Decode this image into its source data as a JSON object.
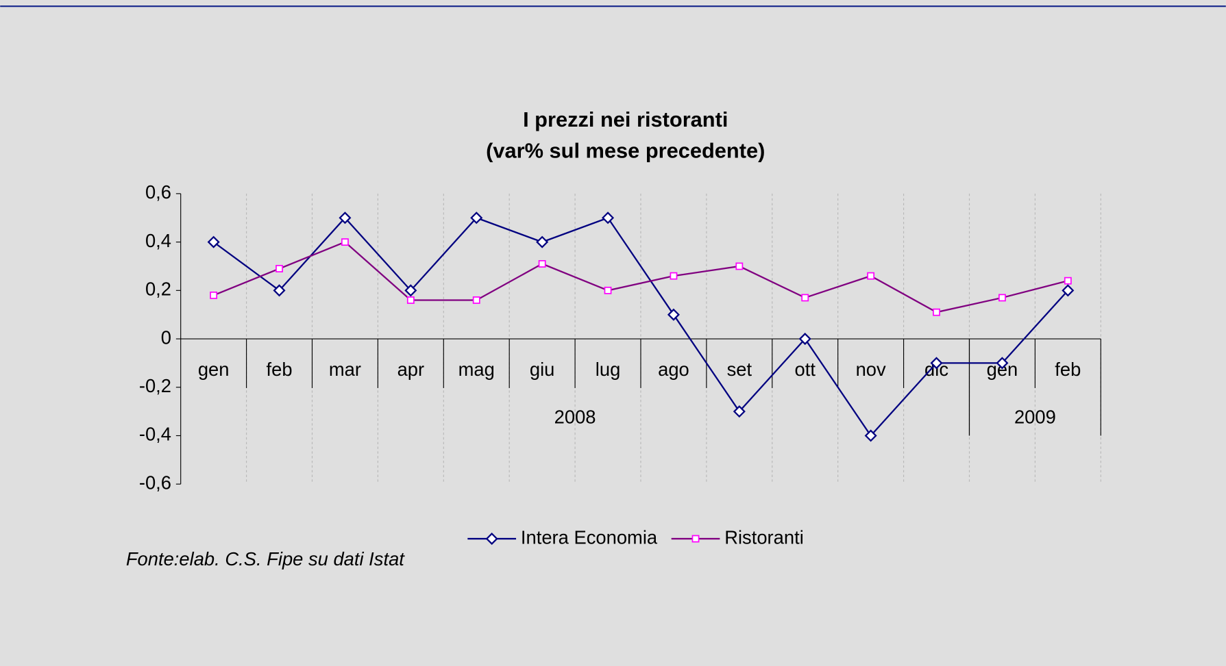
{
  "chart_data": {
    "type": "line",
    "title": "I prezzi nei ristoranti",
    "subtitle": "(var% sul mese precedente)",
    "groups": [
      {
        "name": "2008",
        "categories": [
          "gen",
          "feb",
          "mar",
          "apr",
          "mag",
          "giu",
          "lug",
          "ago",
          "set",
          "ott",
          "nov",
          "dic"
        ]
      },
      {
        "name": "2009",
        "categories": [
          "gen",
          "feb"
        ]
      }
    ],
    "series": [
      {
        "name": "Intera Economia",
        "color": "#000080",
        "marker": "diamond",
        "values": [
          0.4,
          0.2,
          0.5,
          0.2,
          0.5,
          0.4,
          0.5,
          0.1,
          -0.3,
          0,
          -0.4,
          -0.1,
          -0.1,
          0.2
        ]
      },
      {
        "name": "Ristoranti",
        "color": "#800080",
        "marker_color": "#ff00ff",
        "marker": "square",
        "values": [
          0.18,
          0.29,
          0.4,
          0.16,
          0.16,
          0.31,
          0.2,
          0.26,
          0.3,
          0.17,
          0.26,
          0.11,
          0.17,
          0.24
        ]
      }
    ],
    "ylim": [
      -0.6,
      0.6
    ],
    "yticks": [
      {
        "value": -0.6,
        "label": "-0,6"
      },
      {
        "value": -0.4,
        "label": "-0,4"
      },
      {
        "value": -0.2,
        "label": "-0,2"
      },
      0,
      {
        "value": 0.2,
        "label": "0,2"
      },
      {
        "value": 0.4,
        "label": "0,4"
      },
      {
        "value": 0.6,
        "label": "0,6"
      }
    ],
    "grid": true,
    "legend": "bottom",
    "source": "Fonte:elab. C.S. Fipe su dati Istat"
  }
}
